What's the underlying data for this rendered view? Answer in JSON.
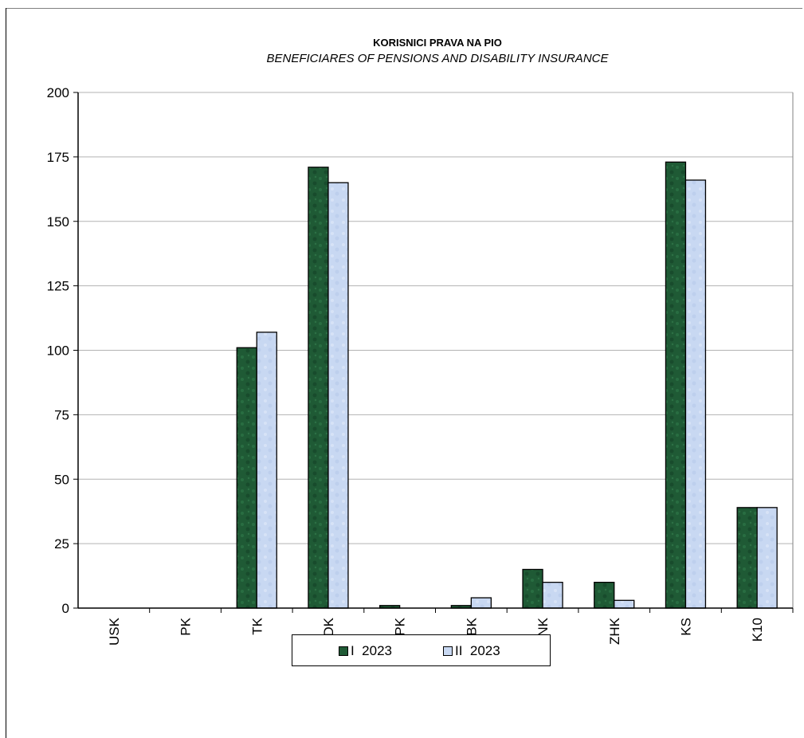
{
  "chart_data": {
    "type": "bar",
    "title": "KORISNICI PRAVA NA PIO",
    "subtitle": "BENEFICIARES OF PENSIONS AND DISABILITY INSURANCE",
    "categories": [
      "USK",
      "PK",
      "TK",
      "ZDK",
      "BPK",
      "SBK",
      "HNK",
      "ZHK",
      "KS",
      "K10"
    ],
    "series": [
      {
        "name": "I  2023",
        "color": "#1f5a35",
        "values": [
          0,
          0,
          101,
          171,
          1,
          1,
          15,
          10,
          173,
          39
        ]
      },
      {
        "name": "II  2023",
        "color": "#c8d8f2",
        "values": [
          0,
          0,
          107,
          165,
          0,
          4,
          10,
          3,
          166,
          39
        ]
      }
    ],
    "ylim": [
      0,
      200
    ],
    "yticks": [
      0,
      25,
      50,
      75,
      100,
      125,
      150,
      175,
      200
    ],
    "grid": true,
    "legend_position": "bottom"
  }
}
